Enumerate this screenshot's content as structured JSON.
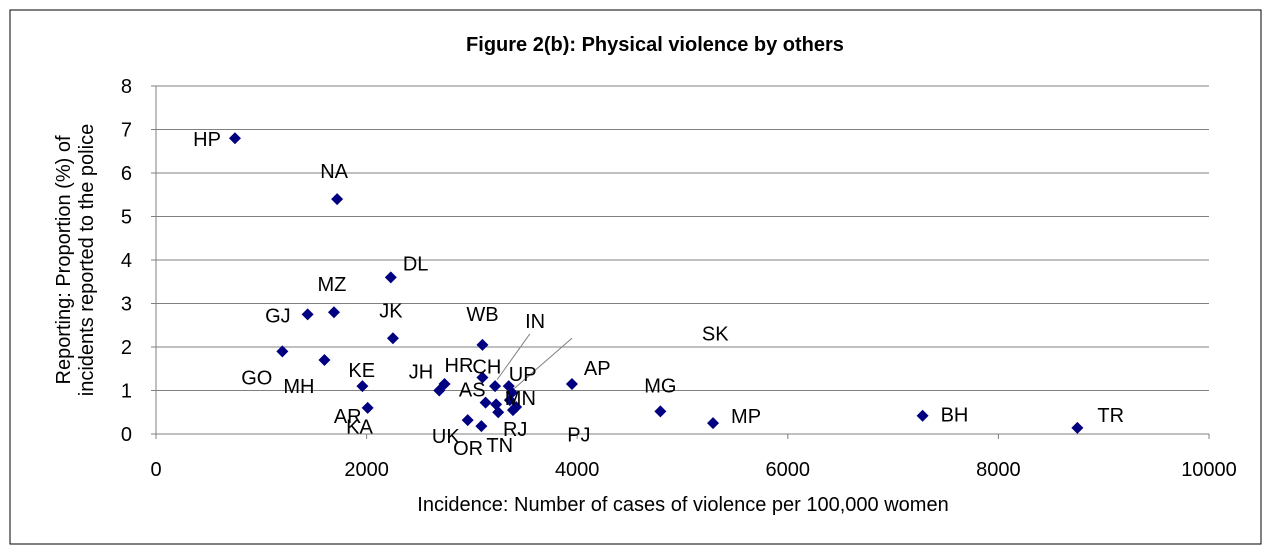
{
  "chart_data": {
    "type": "scatter",
    "title": "Figure 2(b): Physical violence by others",
    "xlabel": "Incidence: Number of cases of violence per 100,000 women",
    "ylabel_lines": [
      "Reporting: Proportion (%) of",
      "incidents reported to the police"
    ],
    "xlim": [
      0,
      10000
    ],
    "ylim": [
      0,
      8
    ],
    "x_ticks": [
      0,
      2000,
      4000,
      6000,
      8000,
      10000
    ],
    "y_ticks": [
      0,
      1,
      2,
      3,
      4,
      5,
      6,
      7,
      8
    ],
    "grid": "horizontal",
    "marker": "diamond",
    "marker_color": "#000080",
    "points": [
      {
        "label": "HP",
        "x": 750,
        "y": 6.8
      },
      {
        "label": "NA",
        "x": 1720,
        "y": 5.4
      },
      {
        "label": "DL",
        "x": 2230,
        "y": 3.6
      },
      {
        "label": "MZ",
        "x": 1690,
        "y": 2.8
      },
      {
        "label": "GJ",
        "x": 1440,
        "y": 2.75
      },
      {
        "label": "JK",
        "x": 2250,
        "y": 2.2
      },
      {
        "label": "WB",
        "x": 3100,
        "y": 2.05
      },
      {
        "label": "GO",
        "x": 1200,
        "y": 1.9
      },
      {
        "label": "MH",
        "x": 1600,
        "y": 1.7
      },
      {
        "label": "KE",
        "x": 1960,
        "y": 1.1
      },
      {
        "label": "AR",
        "x": 2010,
        "y": 0.6
      },
      {
        "label": "JH",
        "x": 2690,
        "y": 1.0
      },
      {
        "label": "HR",
        "x": 2740,
        "y": 1.15
      },
      {
        "label": "CH",
        "x": 3100,
        "y": 1.3
      },
      {
        "label": "IN",
        "x": 3220,
        "y": 1.1
      },
      {
        "label": "UP",
        "x": 3350,
        "y": 1.1
      },
      {
        "label": "SK",
        "x": 3380,
        "y": 0.95
      },
      {
        "label": "MN",
        "x": 3360,
        "y": 0.78
      },
      {
        "label": "AS",
        "x": 3130,
        "y": 0.72
      },
      {
        "label": "KA",
        "x": 3230,
        "y": 0.68
      },
      {
        "label": "RJ",
        "x": 3390,
        "y": 0.55
      },
      {
        "label": "PJ",
        "x": 3250,
        "y": 0.5
      },
      {
        "label": "UK",
        "x": 2960,
        "y": 0.32
      },
      {
        "label": "TN",
        "x": 3090,
        "y": 0.18
      },
      {
        "label": "OR",
        "x": 3420,
        "y": 0.62
      },
      {
        "label": "AP",
        "x": 3950,
        "y": 1.15
      },
      {
        "label": "MG",
        "x": 4790,
        "y": 0.52
      },
      {
        "label": "MP",
        "x": 5290,
        "y": 0.25
      },
      {
        "label": "BH",
        "x": 7280,
        "y": 0.42
      },
      {
        "label": "TR",
        "x": 8750,
        "y": 0.14
      }
    ]
  }
}
